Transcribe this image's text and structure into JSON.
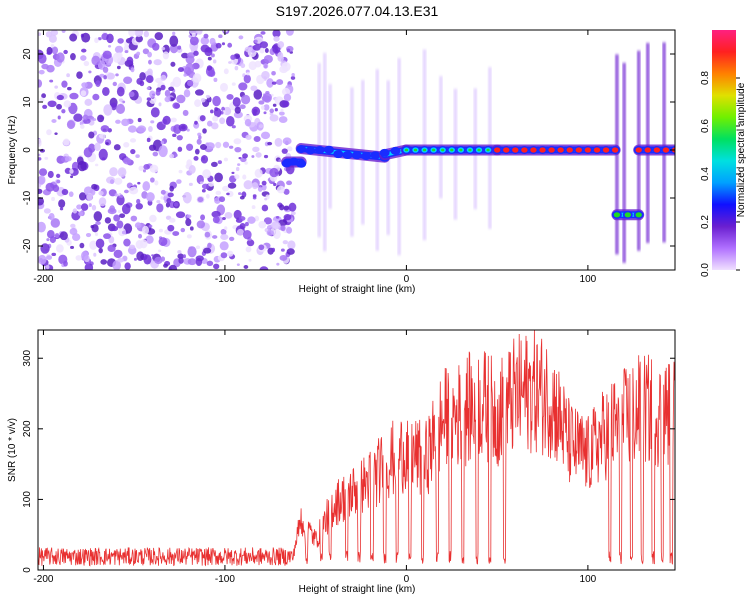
{
  "figure_title": "S197.2026.077.04.13.E31",
  "colors": {
    "snr_line": "#e83030",
    "signal_low": "#6a1fd0",
    "signal_mid_blue": "#1a2cff",
    "signal_cyan": "#00d0ff",
    "signal_green": "#22d922",
    "signal_red": "#ff2020",
    "colorbar_stops": [
      "#f0e0ff",
      "#b070ff",
      "#6a1fd0",
      "#1010ff",
      "#00a0ff",
      "#00e0e0",
      "#00e060",
      "#70f000",
      "#e0e000",
      "#ff8000",
      "#ff2020",
      "#ff2080"
    ]
  },
  "chart_data": [
    {
      "type": "heatmap",
      "title": "",
      "xlabel": "Height of straight line (km)",
      "ylabel": "Frequency (Hz)",
      "xlim": [
        -203,
        148
      ],
      "ylim": [
        -25,
        25
      ],
      "x_ticks": [
        -200,
        -100,
        0,
        100
      ],
      "x_tick_labels": [
        "-200",
        "-100",
        "0",
        "100"
      ],
      "y_ticks": [
        -20,
        -10,
        0,
        10,
        20
      ],
      "y_tick_labels": [
        "-20",
        "-10",
        "0",
        "10",
        "20"
      ],
      "noise_region_x": [
        -203,
        -62
      ],
      "trace_segments": [
        {
          "x": [
            -66,
            -58
          ],
          "y": [
            -2.5,
            -2.5
          ],
          "amplitude": 0.3
        },
        {
          "x": [
            -58,
            -12
          ],
          "y": [
            0.3,
            -1.5
          ],
          "amplitude": 0.35
        },
        {
          "x": [
            -12,
            0
          ],
          "y": [
            -1,
            0
          ],
          "amplitude": 0.3
        },
        {
          "x": [
            0,
            50
          ],
          "y": [
            0,
            0
          ],
          "amplitude": 0.6
        },
        {
          "x": [
            50,
            115
          ],
          "y": [
            0,
            0
          ],
          "amplitude": 0.95
        },
        {
          "x": [
            116,
            128
          ],
          "y": [
            -13.5,
            -13.5
          ],
          "amplitude": 0.5
        },
        {
          "x": [
            128,
            148
          ],
          "y": [
            0,
            0
          ],
          "amplitude": 0.9
        }
      ],
      "vertical_streaks_x": [
        -48,
        -45,
        -42,
        -30,
        -24,
        -16,
        -10,
        -4,
        10,
        19,
        27,
        38,
        46,
        116,
        120,
        128,
        133,
        142
      ],
      "colorbar": {
        "label": "Normalized spectral amplitude",
        "range": [
          0,
          1
        ],
        "ticks": [
          0.0,
          0.2,
          0.4,
          0.6,
          0.8
        ],
        "tick_labels": [
          "0.0",
          "0.2",
          "0.4",
          "0.6",
          "0.8"
        ]
      }
    },
    {
      "type": "line",
      "title": "",
      "xlabel": "Height of straight line (km)",
      "ylabel": "SNR (10 * v/v)",
      "xlim": [
        -203,
        148
      ],
      "ylim": [
        0,
        340
      ],
      "x_ticks": [
        -200,
        -100,
        0,
        100
      ],
      "x_tick_labels": [
        "-200",
        "-100",
        "0",
        "100"
      ],
      "y_ticks": [
        0,
        100,
        200,
        300
      ],
      "y_tick_labels": [
        "0",
        "100",
        "200",
        "300"
      ],
      "series": [
        {
          "name": "SNR",
          "envelope_x": [
            -203,
            -120,
            -63,
            -58,
            -50,
            -40,
            -30,
            -20,
            -10,
            0,
            10,
            20,
            30,
            40,
            50,
            60,
            70,
            80,
            90,
            100,
            110,
            115,
            120,
            130,
            140,
            148
          ],
          "envelope_y": [
            15,
            15,
            20,
            85,
            50,
            110,
            130,
            150,
            180,
            200,
            180,
            250,
            260,
            280,
            260,
            290,
            300,
            285,
            210,
            190,
            230,
            240,
            250,
            270,
            260,
            265
          ],
          "dips_x": [
            -55,
            -47,
            -42,
            -33,
            -26,
            -19,
            -12,
            -5,
            2,
            9,
            17,
            24,
            31,
            39,
            46,
            54,
            112,
            118,
            124,
            130,
            136,
            141,
            146
          ]
        }
      ]
    }
  ]
}
